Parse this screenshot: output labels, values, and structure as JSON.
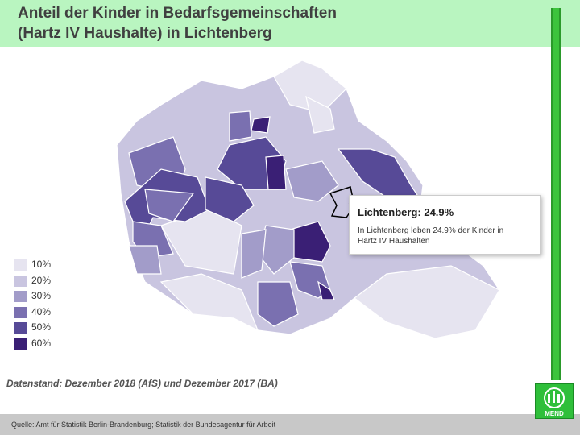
{
  "header": {
    "title_lines": [
      "Anteil der Kinder in Bedarfsgemeinschaften",
      "(Hartz IV Haushalte) in Lichtenberg"
    ]
  },
  "callout": {
    "title": "Lichtenberg: 24.9%",
    "text_lines": [
      "In Lichtenberg leben 24.9% der Kinder in",
      "Hartz IV Haushalten"
    ]
  },
  "legend": {
    "items": [
      {
        "label": "10%",
        "color": "#e6e4f0"
      },
      {
        "label": "20%",
        "color": "#c9c5e0"
      },
      {
        "label": "30%",
        "color": "#a29cc9"
      },
      {
        "label": "40%",
        "color": "#7a70b0"
      },
      {
        "label": "50%",
        "color": "#574a97"
      },
      {
        "label": "60%",
        "color": "#3a1f75"
      }
    ]
  },
  "footnote": "Datenstand: Dezember 2018 (AfS) und Dezember 2017 (BA)",
  "footer": {
    "source": "Quelle: Amt für Statistik Berlin-Brandenburg; Statistik der Bundesagentur für Arbeit"
  },
  "logo": {
    "text": "MEND"
  }
}
